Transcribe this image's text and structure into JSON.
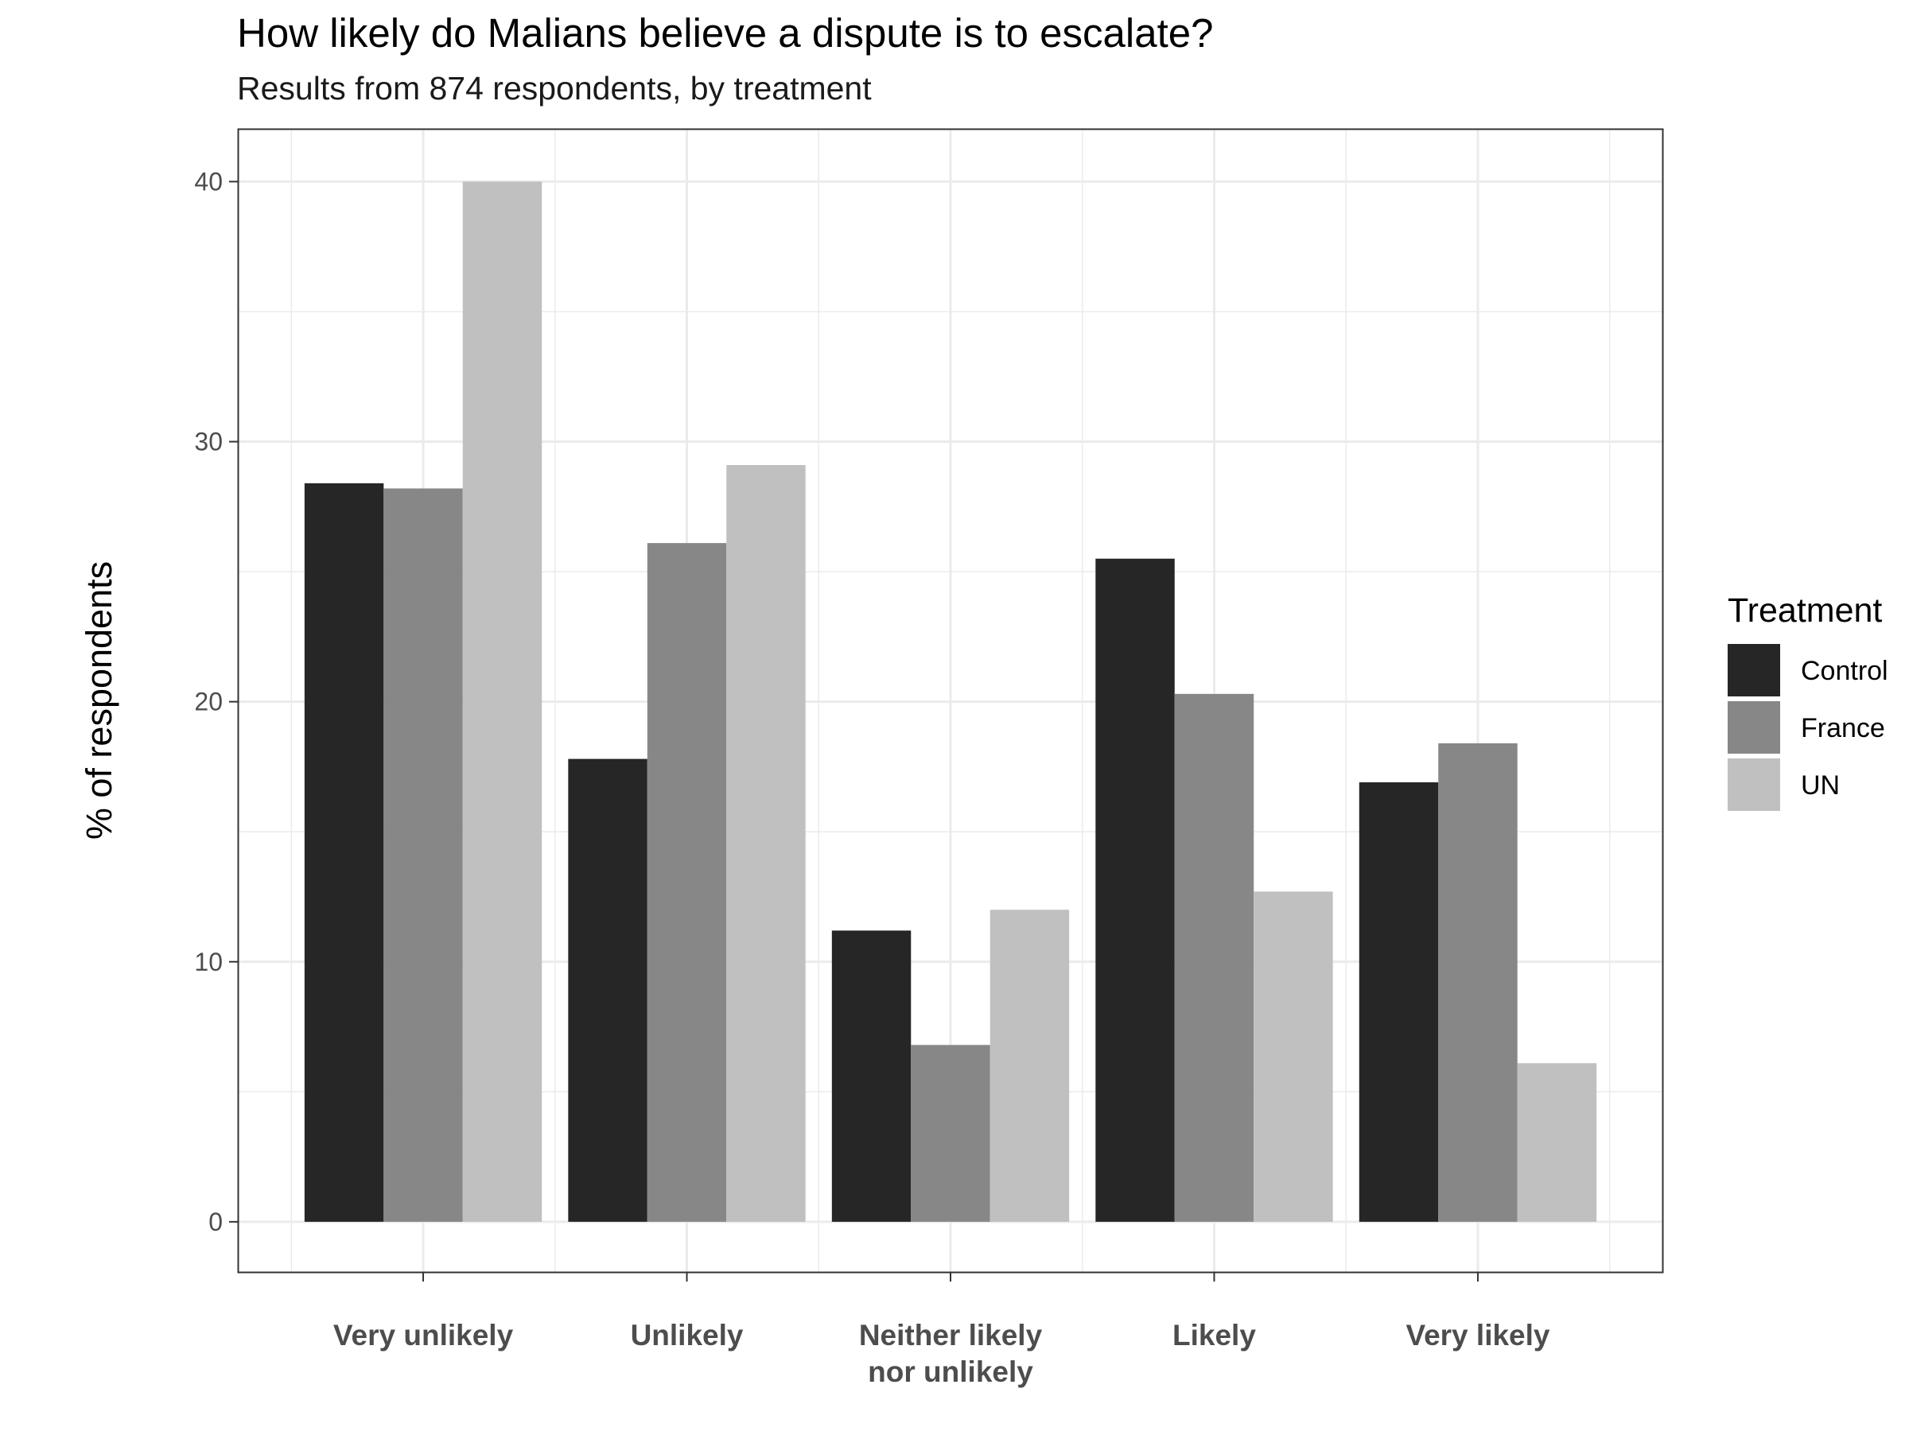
{
  "chart_data": {
    "type": "bar",
    "title": "How likely do Malians believe a dispute is to escalate?",
    "subtitle": "Results from 874 respondents, by treatment",
    "xlabel": "",
    "ylabel": "% of respondents",
    "categories": [
      [
        "Very unlikely"
      ],
      [
        "Unlikely"
      ],
      [
        "Neither likely",
        "nor unlikely"
      ],
      [
        "Likely"
      ],
      [
        "Very likely"
      ]
    ],
    "series": [
      {
        "name": "Control",
        "color": "#262626",
        "values": [
          28.4,
          17.8,
          11.2,
          25.5,
          16.9
        ]
      },
      {
        "name": "France",
        "color": "#878787",
        "values": [
          28.2,
          26.1,
          6.8,
          20.3,
          18.4
        ]
      },
      {
        "name": "UN",
        "color": "#c0c0c0",
        "values": [
          40.0,
          29.1,
          12.0,
          12.7,
          6.1
        ]
      }
    ],
    "ylim": [
      -1.93,
      42.0
    ],
    "yticks": [
      0,
      10,
      20,
      30,
      40
    ],
    "yticklabels": [
      "0",
      "10",
      "20",
      "30",
      "40"
    ],
    "grid": true,
    "legend": {
      "title": "Treatment",
      "position": "right"
    }
  }
}
